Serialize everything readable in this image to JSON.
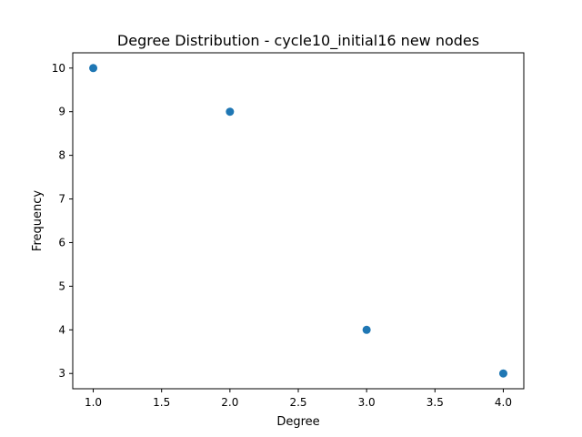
{
  "chart_data": {
    "type": "scatter",
    "title": "Degree Distribution - cycle10_initial16 new nodes",
    "xlabel": "Degree",
    "ylabel": "Frequency",
    "x": [
      1.0,
      2.0,
      3.0,
      4.0
    ],
    "y": [
      10,
      9,
      4,
      3
    ],
    "xlim": [
      0.85,
      4.15
    ],
    "ylim": [
      2.65,
      10.35
    ],
    "xticks": [
      1.0,
      1.5,
      2.0,
      2.5,
      3.0,
      3.5,
      4.0
    ],
    "xtick_labels": [
      "1.0",
      "1.5",
      "2.0",
      "2.5",
      "3.0",
      "3.5",
      "4.0"
    ],
    "yticks": [
      3,
      4,
      5,
      6,
      7,
      8,
      9,
      10
    ],
    "ytick_labels": [
      "3",
      "4",
      "5",
      "6",
      "7",
      "8",
      "9",
      "10"
    ],
    "grid": false,
    "legend": "none",
    "marker_color": "#1f77b4"
  }
}
